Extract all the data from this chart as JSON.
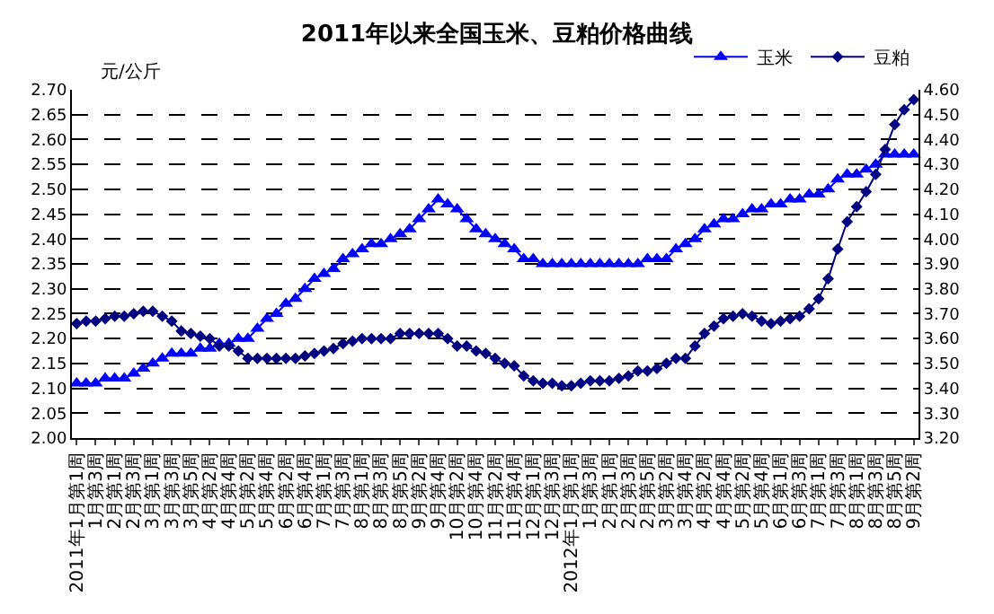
{
  "chart_data": {
    "type": "line",
    "title": "2011年以来全国玉米、豆粕价格曲线",
    "ylabel": "元/公斤",
    "categories": [
      "2011年1月第1周",
      null,
      "1月第3周",
      null,
      "2月第1周",
      null,
      "2月第3周",
      null,
      "3月第1周",
      null,
      "3月第3周",
      null,
      "3月第5周",
      null,
      "4月第2周",
      null,
      "4月第4周",
      null,
      "5月第2周",
      null,
      "5月第4周",
      null,
      "6月第2周",
      null,
      "6月第4周",
      null,
      "7月第1周",
      null,
      "7月第3周",
      null,
      "8月第1周",
      null,
      "8月第3周",
      null,
      "8月第5周",
      null,
      "9月第2周",
      null,
      "9月第4周",
      null,
      "10月第2周",
      null,
      "10月第4周",
      null,
      "11月第2周",
      null,
      "11月第4周",
      null,
      "12月第1周",
      null,
      "12月第3周",
      null,
      "2012年1月第1周",
      null,
      "1月第3周",
      null,
      "2月第1周",
      null,
      "2月第3周",
      null,
      "2月第5周",
      null,
      "3月第2周",
      null,
      "3月第4周",
      null,
      "4月第2周",
      null,
      "4月第4周",
      null,
      "5月第2周",
      null,
      "5月第4周",
      null,
      "6月第1周",
      null,
      "6月第3周",
      null,
      "7月第1周",
      null,
      "7月第3周",
      null,
      "8月第1周",
      null,
      "8月第3周",
      null,
      "8月第5周",
      null,
      "9月第2周"
    ],
    "series": [
      {
        "name": "玉米",
        "color": "#0000ff",
        "marker": "triangle",
        "values": [
          2.11,
          2.11,
          2.11,
          2.12,
          2.12,
          2.12,
          2.13,
          2.14,
          2.15,
          2.16,
          2.17,
          2.17,
          2.17,
          2.18,
          2.18,
          2.19,
          2.19,
          2.2,
          2.2,
          2.22,
          2.24,
          2.25,
          2.27,
          2.28,
          2.3,
          2.32,
          2.33,
          2.34,
          2.36,
          2.37,
          2.38,
          2.39,
          2.39,
          2.4,
          2.41,
          2.42,
          2.44,
          2.46,
          2.48,
          2.47,
          2.46,
          2.44,
          2.42,
          2.41,
          2.4,
          2.39,
          2.38,
          2.36,
          2.36,
          2.35,
          2.35,
          2.35,
          2.35,
          2.35,
          2.35,
          2.35,
          2.35,
          2.35,
          2.35,
          2.35,
          2.36,
          2.36,
          2.36,
          2.38,
          2.39,
          2.4,
          2.42,
          2.43,
          2.44,
          2.44,
          2.45,
          2.46,
          2.46,
          2.47,
          2.47,
          2.48,
          2.48,
          2.49,
          2.49,
          2.5,
          2.52,
          2.53,
          2.53,
          2.54,
          2.55,
          2.57,
          2.57,
          2.57,
          2.57
        ]
      },
      {
        "name": "豆粕",
        "color": "#000080",
        "marker": "diamond",
        "axis": "y2",
        "values": [
          3.66,
          3.67,
          3.67,
          3.68,
          3.69,
          3.69,
          3.7,
          3.71,
          3.71,
          3.69,
          3.67,
          3.63,
          3.62,
          3.61,
          3.6,
          3.57,
          3.57,
          3.55,
          3.52,
          3.52,
          3.52,
          3.52,
          3.52,
          3.52,
          3.53,
          3.54,
          3.55,
          3.56,
          3.58,
          3.59,
          3.6,
          3.6,
          3.6,
          3.6,
          3.62,
          3.62,
          3.62,
          3.62,
          3.62,
          3.6,
          3.57,
          3.57,
          3.55,
          3.54,
          3.52,
          3.5,
          3.49,
          3.45,
          3.43,
          3.42,
          3.42,
          3.41,
          3.41,
          3.42,
          3.43,
          3.43,
          3.43,
          3.44,
          3.45,
          3.47,
          3.47,
          3.48,
          3.5,
          3.52,
          3.52,
          3.57,
          3.62,
          3.65,
          3.68,
          3.69,
          3.7,
          3.69,
          3.67,
          3.66,
          3.67,
          3.68,
          3.69,
          3.72,
          3.76,
          3.84,
          3.96,
          4.07,
          4.13,
          4.19,
          4.26,
          4.36,
          4.46,
          4.52,
          4.56
        ]
      }
    ],
    "ylim": [
      2.0,
      2.7
    ],
    "yticks": [
      {
        "value": 2.0,
        "label": "2.00"
      },
      2.05,
      {
        "value": 2.1,
        "label": "2.10"
      },
      2.15,
      {
        "value": 2.2,
        "label": "2.20"
      },
      2.25,
      {
        "value": 2.3,
        "label": "2.30"
      },
      2.35,
      {
        "value": 2.4,
        "label": "2.40"
      },
      2.45,
      {
        "value": 2.5,
        "label": "2.50"
      },
      2.55,
      {
        "value": 2.6,
        "label": "2.60"
      },
      2.65,
      {
        "value": 2.7,
        "label": "2.70"
      }
    ],
    "y2lim": [
      3.2,
      4.6
    ],
    "y2ticks": [
      {
        "value": 3.2,
        "label": "3.20"
      },
      {
        "value": 3.3,
        "label": "3.30"
      },
      {
        "value": 3.4,
        "label": "3.40"
      },
      {
        "value": 3.5,
        "label": "3.50"
      },
      {
        "value": 3.6,
        "label": "3.60"
      },
      {
        "value": 3.7,
        "label": "3.70"
      },
      {
        "value": 3.8,
        "label": "3.80"
      },
      {
        "value": 3.9,
        "label": "3.90"
      },
      {
        "value": 4.0,
        "label": "4.00"
      },
      {
        "value": 4.1,
        "label": "4.10"
      },
      {
        "value": 4.2,
        "label": "4.20"
      },
      {
        "value": 4.3,
        "label": "4.30"
      },
      {
        "value": 4.4,
        "label": "4.40"
      },
      {
        "value": 4.5,
        "label": "4.50"
      },
      {
        "value": 4.6,
        "label": "4.60"
      }
    ],
    "grid": "y",
    "legend": "top right",
    "line_style": "solid"
  }
}
